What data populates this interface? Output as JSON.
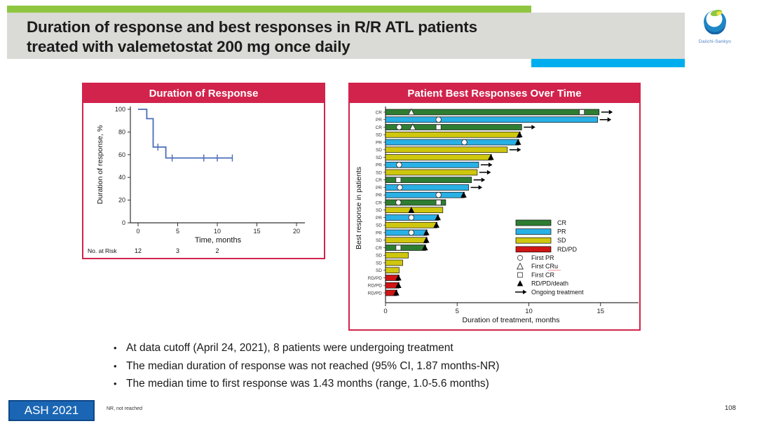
{
  "header": {
    "title_line1": "Duration of response and best responses in R/R ATL patients",
    "title_line2": "treated with valemetostat 200 mg once daily",
    "accent_green": "#8fc640",
    "accent_blue": "#00aeef"
  },
  "logo": {
    "caption": "Daiichi-Sankyo"
  },
  "panel_accent_color": "#d2234c",
  "chart_data": [
    {
      "type": "line",
      "subtype": "kaplan-meier",
      "title": "Duration of Response",
      "xlabel": "Time, months",
      "ylabel": "Duration of response, %",
      "xlim": [
        0,
        21.5
      ],
      "ylim": [
        0,
        100
      ],
      "xticks": [
        0,
        5,
        10,
        15,
        20
      ],
      "yticks": [
        0,
        20,
        40,
        60,
        80,
        100
      ],
      "grid": false,
      "line_color": "#4a6db8",
      "steps": [
        [
          0,
          100
        ],
        [
          1.1,
          100
        ],
        [
          1.1,
          91.7
        ],
        [
          1.9,
          91.7
        ],
        [
          1.9,
          66.7
        ],
        [
          3.5,
          66.7
        ],
        [
          3.5,
          57.1
        ],
        [
          11.9,
          57.1
        ]
      ],
      "censor_marks": [
        [
          2.5,
          66.7
        ],
        [
          4.3,
          57.1
        ],
        [
          8.3,
          57.1
        ],
        [
          10.0,
          57.1
        ],
        [
          11.9,
          57.1
        ]
      ],
      "no_at_risk": {
        "label": "No. at Risk",
        "times": [
          0,
          5,
          10
        ],
        "values": [
          12,
          3,
          2
        ]
      }
    },
    {
      "type": "bar",
      "subtype": "swimmer",
      "title": "Patient Best Responses Over Time",
      "xlabel": "Duration of treatment, months",
      "ylabel": "Best response in patients",
      "xlim": [
        0,
        17.5
      ],
      "xticks": [
        0,
        5,
        10,
        15
      ],
      "grid": false,
      "colors": {
        "CR": "#2e7d32",
        "PR": "#29b1e6",
        "SD": "#cfc70e",
        "RD/PD": "#d01414"
      },
      "patients": [
        {
          "response": "CR",
          "duration": 14.9,
          "end": "ongoing",
          "markers": [
            {
              "t": 1.8,
              "m": "first_cru"
            },
            {
              "t": 13.7,
              "m": "first_cr"
            }
          ]
        },
        {
          "response": "PR",
          "duration": 14.8,
          "end": "ongoing",
          "markers": [
            {
              "t": 3.7,
              "m": "first_pr"
            }
          ]
        },
        {
          "response": "CR",
          "duration": 9.5,
          "end": "ongoing",
          "markers": [
            {
              "t": 0.95,
              "m": "first_pr"
            },
            {
              "t": 1.9,
              "m": "first_cru"
            },
            {
              "t": 3.7,
              "m": "first_cr"
            }
          ]
        },
        {
          "response": "SD",
          "duration": 9.4,
          "end": "death",
          "markers": []
        },
        {
          "response": "PR",
          "duration": 9.3,
          "end": "death",
          "markers": [
            {
              "t": 5.5,
              "m": "first_pr"
            }
          ]
        },
        {
          "response": "SD",
          "duration": 8.5,
          "end": "ongoing",
          "markers": []
        },
        {
          "response": "SD",
          "duration": 7.4,
          "end": "death",
          "markers": []
        },
        {
          "response": "PR",
          "duration": 6.5,
          "end": "ongoing",
          "markers": [
            {
              "t": 0.95,
              "m": "first_pr"
            }
          ]
        },
        {
          "response": "SD",
          "duration": 6.4,
          "end": "ongoing",
          "markers": []
        },
        {
          "response": "CR",
          "duration": 6.0,
          "end": "ongoing",
          "markers": [
            {
              "t": 0.9,
              "m": "first_cr"
            }
          ]
        },
        {
          "response": "PR",
          "duration": 5.8,
          "end": "ongoing",
          "markers": [
            {
              "t": 1.0,
              "m": "first_pr"
            }
          ]
        },
        {
          "response": "PR",
          "duration": 5.5,
          "end": "death",
          "markers": [
            {
              "t": 3.7,
              "m": "first_pr"
            }
          ]
        },
        {
          "response": "CR",
          "duration": 4.2,
          "end": "none",
          "markers": [
            {
              "t": 0.9,
              "m": "first_pr"
            },
            {
              "t": 3.7,
              "m": "first_cr"
            }
          ]
        },
        {
          "response": "SD",
          "duration": 4.0,
          "end": "none",
          "markers": [
            {
              "t": 1.8,
              "m": "rdpd_death"
            }
          ]
        },
        {
          "response": "PR",
          "duration": 3.7,
          "end": "death",
          "markers": [
            {
              "t": 1.8,
              "m": "first_pr"
            }
          ]
        },
        {
          "response": "SD",
          "duration": 3.6,
          "end": "death",
          "markers": []
        },
        {
          "response": "PR",
          "duration": 2.9,
          "end": "death",
          "markers": [
            {
              "t": 1.8,
              "m": "first_pr"
            }
          ]
        },
        {
          "response": "SD",
          "duration": 2.9,
          "end": "death",
          "markers": []
        },
        {
          "response": "CR",
          "duration": 2.8,
          "end": "death",
          "markers": [
            {
              "t": 0.9,
              "m": "first_cr"
            }
          ]
        },
        {
          "response": "SD",
          "duration": 1.6,
          "end": "none",
          "markers": []
        },
        {
          "response": "SD",
          "duration": 1.2,
          "end": "none",
          "markers": []
        },
        {
          "response": "SD",
          "duration": 0.95,
          "end": "none",
          "markers": []
        },
        {
          "response": "RD/PD",
          "duration": 0.95,
          "end": "death",
          "markers": []
        },
        {
          "response": "RD/PD",
          "duration": 0.95,
          "end": "death",
          "markers": []
        },
        {
          "response": "RD/PD",
          "duration": 0.8,
          "end": "death",
          "markers": []
        }
      ],
      "legend_bars": [
        {
          "label": "CR",
          "color": "#2e7d32"
        },
        {
          "label": "PR",
          "color": "#29b1e6"
        },
        {
          "label": "SD",
          "color": "#cfc70e"
        },
        {
          "label": "RD/PD",
          "color": "#d01414"
        }
      ],
      "legend_markers": [
        {
          "symbol": "first_pr",
          "label": "First PR"
        },
        {
          "symbol": "first_cru",
          "label": "First CRu",
          "underline": true
        },
        {
          "symbol": "first_cr",
          "label": "First CR"
        },
        {
          "symbol": "rdpd_death",
          "label": "RD/PD/death"
        },
        {
          "symbol": "ongoing",
          "label": "Ongoing treatment"
        }
      ],
      "legend_position": "right"
    }
  ],
  "bullets": [
    "At data cutoff (April 24, 2021), 8 patients were undergoing treatment",
    "The median duration of response was not reached (95% CI, 1.87 months-NR)",
    "The median time to first response was 1.43 months (range, 1.0-5.6 months)"
  ],
  "footer": {
    "badge": "ASH 2021",
    "footnote": "NR, not reached",
    "page": "108"
  }
}
